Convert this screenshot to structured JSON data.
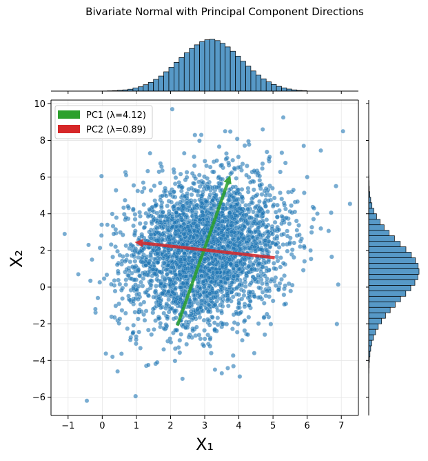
{
  "chart_data": {
    "type": "scatter",
    "title": "Bivariate Normal with Principal Component Directions",
    "xlabel": "X₁",
    "ylabel": "X₂",
    "xlim": [
      -1.5,
      7.5
    ],
    "ylim": [
      -7,
      10.2
    ],
    "xticks": [
      -1,
      0,
      1,
      2,
      3,
      4,
      5,
      6,
      7
    ],
    "yticks": [
      -6,
      -4,
      -2,
      0,
      2,
      4,
      6,
      8,
      10
    ],
    "grid": true,
    "legend_position": "top-left",
    "point_color": "#1f77b4",
    "scatter_sample": [
      [
        -1.1,
        2.9
      ],
      [
        -0.45,
        -6.2
      ],
      [
        7.05,
        8.5
      ],
      [
        6.4,
        7.45
      ],
      [
        5.3,
        9.25
      ],
      [
        0.45,
        -4.6
      ],
      [
        1.35,
        -4.25
      ],
      [
        3.5,
        -4.7
      ],
      [
        1.4,
        7.3
      ],
      [
        0.3,
        -3.8
      ],
      [
        5.9,
        7.7
      ],
      [
        4.7,
        8.6
      ],
      [
        6.2,
        4.3
      ],
      [
        -0.4,
        2.3
      ],
      [
        0.15,
        3.4
      ],
      [
        5.7,
        3.1
      ],
      [
        4.45,
        -3.6
      ],
      [
        2.35,
        -5.0
      ],
      [
        2.9,
        8.3
      ],
      [
        1.2,
        5.7
      ],
      [
        -0.7,
        0.7
      ],
      [
        6.0,
        6.0
      ],
      [
        5.2,
        0.2
      ],
      [
        0.7,
        6.1
      ],
      [
        -0.2,
        -1.2
      ],
      [
        4.9,
        7.1
      ],
      [
        1.8,
        -3.4
      ],
      [
        3.6,
        8.5
      ],
      [
        0.9,
        -2.5
      ],
      [
        5.6,
        5.3
      ],
      [
        -0.3,
        1.5
      ],
      [
        6.1,
        2.0
      ],
      [
        2.4,
        7.3
      ],
      [
        3.3,
        -4.5
      ],
      [
        4.1,
        -2.9
      ]
    ],
    "pc_center": [
      3.0,
      2.0
    ],
    "components": [
      {
        "label": "PC1 (λ=4.12)",
        "color": "#2ca02c",
        "start": [
          2.2,
          -2.1
        ],
        "end": [
          3.75,
          6.1
        ]
      },
      {
        "label": "PC2 (λ=0.89)",
        "color": "#d62728",
        "start": [
          5.05,
          1.6
        ],
        "end": [
          0.95,
          2.45
        ]
      }
    ],
    "marginal_x": {
      "bin_start": 0.0,
      "bin_width": 0.15,
      "counts": [
        1,
        2,
        3,
        6,
        9,
        14,
        22,
        31,
        46,
        62,
        84,
        108,
        138,
        170,
        205,
        240,
        274,
        305,
        331,
        353,
        367,
        370,
        361,
        342,
        316,
        285,
        250,
        214,
        178,
        144,
        114,
        88,
        66,
        48,
        34,
        23,
        15,
        9,
        5,
        3
      ]
    },
    "marginal_y": {
      "bin_start": -4.7,
      "bin_width": 0.3,
      "counts": [
        1,
        2,
        4,
        7,
        11,
        17,
        26,
        38,
        53,
        72,
        94,
        120,
        148,
        178,
        207,
        235,
        258,
        274,
        281,
        276,
        261,
        238,
        208,
        176,
        144,
        113,
        86,
        63,
        44,
        29,
        18,
        11,
        6,
        3,
        2,
        1
      ]
    }
  }
}
